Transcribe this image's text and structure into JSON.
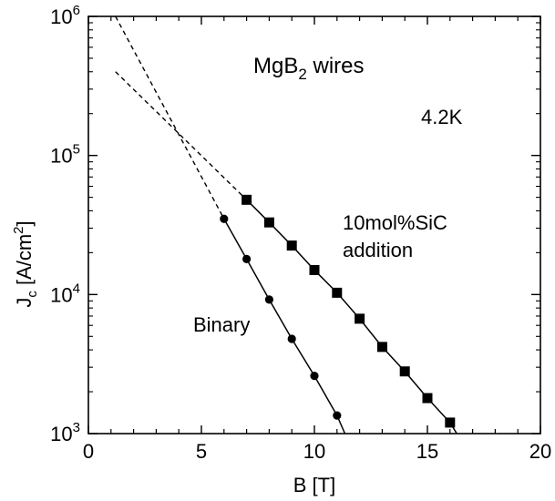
{
  "chart_data": {
    "type": "line",
    "xscale": "linear",
    "yscale": "log",
    "xlabel": "B [T]",
    "ylabel_main": "J",
    "ylabel_sub": "c",
    "ylabel_unit": "[A/cm",
    "ylabel_unit_sup": "2",
    "ylabel_unit_close": "]",
    "xlim": [
      0,
      20
    ],
    "ylim": [
      1000,
      1000000
    ],
    "xticks": [
      0,
      5,
      10,
      15,
      20
    ],
    "xtick_labels": [
      "0",
      "5",
      "10",
      "15",
      "20"
    ],
    "yticks": [
      1000,
      10000,
      100000,
      1000000
    ],
    "ytick_base": "10",
    "ytick_exps": [
      "3",
      "4",
      "5",
      "6"
    ],
    "grid": false,
    "annotations": {
      "title_main": "MgB",
      "title_sub": "2",
      "title_rest": " wires",
      "temperature": "4.2K",
      "sic_line1": "10mol%SiC",
      "sic_line2": "addition",
      "binary": "Binary"
    },
    "series": [
      {
        "name": "Binary",
        "marker": "circle",
        "x": [
          6,
          7,
          8,
          9,
          10,
          11
        ],
        "y": [
          35000,
          18000,
          9200,
          4800,
          2600,
          1350
        ],
        "fit_end": [
          11.35,
          1000
        ],
        "extrapolation": [
          [
            1.2,
            1000000
          ],
          [
            6,
            35000
          ]
        ]
      },
      {
        "name": "10mol%SiC addition",
        "marker": "square",
        "x": [
          7,
          8,
          9,
          10,
          11,
          12,
          13,
          14,
          15,
          16
        ],
        "y": [
          48000,
          33000,
          22500,
          15000,
          10300,
          6700,
          4200,
          2800,
          1800,
          1200
        ],
        "fit_end": [
          16.3,
          1000
        ],
        "extrapolation": [
          [
            1.2,
            400000
          ],
          [
            7,
            48000
          ]
        ]
      }
    ]
  }
}
